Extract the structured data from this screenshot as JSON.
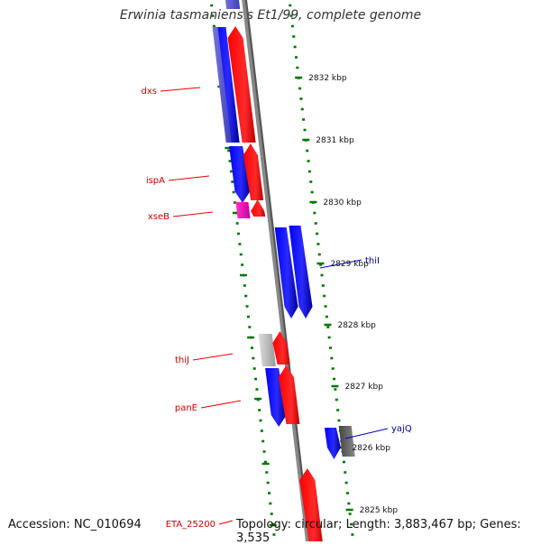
{
  "title": "Erwinia tasmaniensis Et1/99, complete genome",
  "footer": {
    "accession": "Accession: NC_010694",
    "topology": "Topology: circular; Length: 3,883,467 bp; Genes: 3,535"
  },
  "colors": {
    "forward_gene": "#ff0000",
    "reverse_gene": "#0000ff",
    "forward_label": "#cc0000",
    "reverse_label": "#000099",
    "scale_ticks": "#007700",
    "backbone": "#888888",
    "other_feature": "#aaaaaa",
    "misc_feature": "#ff33cc"
  },
  "scale_labels": [
    "2832 kbp",
    "2831 kbp",
    "2830 kbp",
    "2829 kbp",
    "2828 kbp",
    "2827 kbp",
    "2826 kbp",
    "2825 kbp"
  ],
  "gene_labels": [
    {
      "text": "dxs",
      "strand": "forward"
    },
    {
      "text": "ispA",
      "strand": "forward"
    },
    {
      "text": "xseB",
      "strand": "forward"
    },
    {
      "text": "thiI",
      "strand": "reverse"
    },
    {
      "text": "thiJ",
      "strand": "forward"
    },
    {
      "text": "panE",
      "strand": "forward"
    },
    {
      "text": "yajQ",
      "strand": "reverse"
    },
    {
      "text": "ETA_25200",
      "strand": "forward"
    }
  ]
}
